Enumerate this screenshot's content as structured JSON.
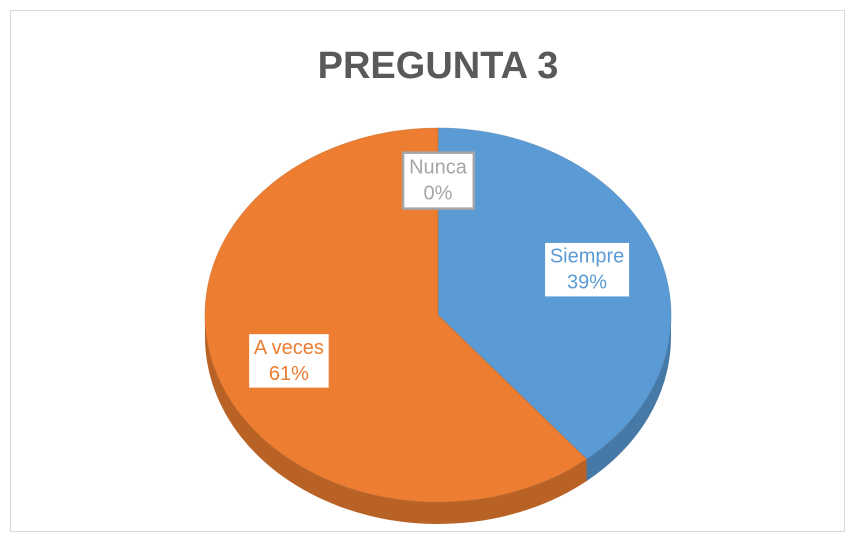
{
  "chart_data": {
    "type": "pie",
    "title": "PREGUNTA 3",
    "categories": [
      "Siempre",
      "A veces",
      "Nunca"
    ],
    "values": [
      39,
      61,
      0
    ],
    "value_labels": [
      "39%",
      "61%",
      "0%"
    ],
    "colors": [
      "#5b9bd5",
      "#ed7d31",
      "#a5a5a5"
    ]
  }
}
